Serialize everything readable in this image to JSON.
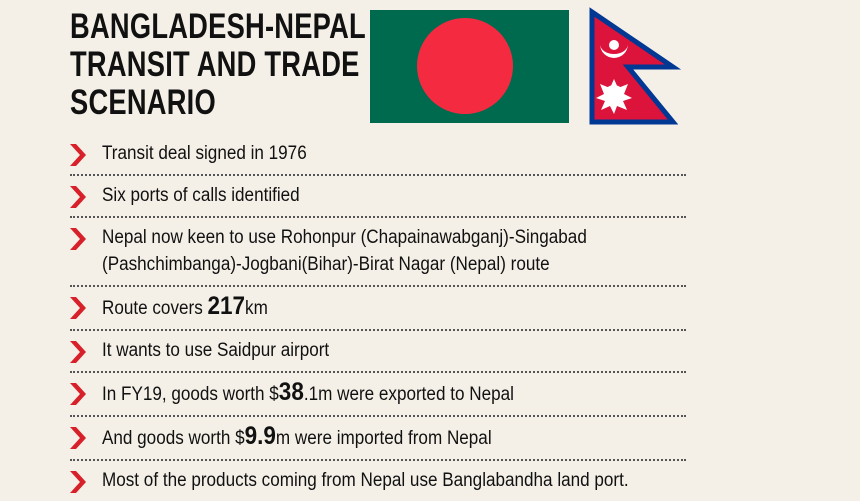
{
  "header": {
    "title_lines": [
      "BANGLADESH-NEPAL",
      "TRANSIT AND TRADE",
      "SCENARIO"
    ]
  },
  "items": [
    [
      [
        {
          "text": "Transit deal signed in 1976"
        }
      ]
    ],
    [
      [
        {
          "text": "Six ports of calls identified"
        }
      ]
    ],
    [
      [
        {
          "text": "Nepal now keen to use Rohonpur (Chapainawabganj)-Singabad"
        }
      ],
      [
        {
          "text": "(Pashchimbanga)-Jogbani(Bihar)-Birat Nagar (Nepal) route"
        }
      ]
    ],
    [
      [
        {
          "text": "Route covers "
        },
        {
          "text": "217",
          "strong": true
        },
        {
          "text": "km"
        }
      ]
    ],
    [
      [
        {
          "text": "It wants to use Saidpur airport"
        }
      ]
    ],
    [
      [
        {
          "text": "In FY19, goods worth $"
        },
        {
          "text": "38",
          "strong": true
        },
        {
          "text": ".1m were exported to Nepal"
        }
      ]
    ],
    [
      [
        {
          "text": "And goods worth $"
        },
        {
          "text": "9.9",
          "strong": true
        },
        {
          "text": "m were imported from Nepal"
        }
      ]
    ],
    [
      [
        {
          "text": "Most of the products coming from Nepal use Banglabandha land port."
        }
      ]
    ]
  ]
}
